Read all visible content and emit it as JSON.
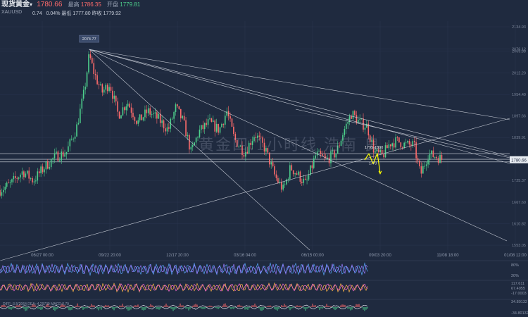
{
  "header": {
    "title": "现货黄金",
    "dropdown_glyph": "▾",
    "price": "1780.66",
    "symbol": "XAUUSD",
    "change": "0.74",
    "change_pct": "0.04%",
    "high_label": "最高",
    "high": "1786.35",
    "open_label": "开盘",
    "open": "1779.81",
    "low_label": "最低",
    "low": "1777.80",
    "prev_label": "昨收",
    "prev": "1779.92"
  },
  "watermark": "黄金四.1小时线 浩南 良",
  "colors": {
    "background": "#1f2a3f",
    "candle_up": "#4dd08c",
    "candle_down": "#ff6b6b",
    "trendline": "#c7ccd6",
    "forecast_arrow": "#ffff00",
    "price_tag": "#e8ecf2"
  },
  "chart_data": {
    "type": "candlestick",
    "price_axis_ticks": [
      2134.93,
      2076.12,
      2069.88,
      2012.2,
      1954.49,
      1897.66,
      1839.91,
      1782.38,
      1725.37,
      1667.6,
      1610.82,
      1553.05
    ],
    "time_axis_ticks": [
      "06/27 00:00",
      "09/22 20:00",
      "12/17 20:00",
      "03/16 04:00",
      "06/15 00:00",
      "09/03 20:00",
      "11/08 18:00",
      "01/08 12:00"
    ],
    "last_price": 1780.66,
    "annotations": [
      {
        "text": "2074.77",
        "type": "peak_label",
        "value": 2074.77
      },
      {
        "text": "1795-1800",
        "type": "target_zone"
      },
      {
        "text": "1770",
        "type": "target_level"
      }
    ],
    "price_path": [
      {
        "t": 0.0,
        "p": 1700
      },
      {
        "t": 0.02,
        "p": 1715
      },
      {
        "t": 0.045,
        "p": 1750
      },
      {
        "t": 0.065,
        "p": 1725
      },
      {
        "t": 0.09,
        "p": 1765
      },
      {
        "t": 0.11,
        "p": 1790
      },
      {
        "t": 0.13,
        "p": 1800
      },
      {
        "t": 0.15,
        "p": 1865
      },
      {
        "t": 0.165,
        "p": 1960
      },
      {
        "t": 0.175,
        "p": 2060
      },
      {
        "t": 0.185,
        "p": 2010
      },
      {
        "t": 0.2,
        "p": 1960
      },
      {
        "t": 0.215,
        "p": 1985
      },
      {
        "t": 0.232,
        "p": 1900
      },
      {
        "t": 0.25,
        "p": 1935
      },
      {
        "t": 0.27,
        "p": 1880
      },
      {
        "t": 0.29,
        "p": 1910
      },
      {
        "t": 0.31,
        "p": 1890
      },
      {
        "t": 0.33,
        "p": 1860
      },
      {
        "t": 0.345,
        "p": 1920
      },
      {
        "t": 0.36,
        "p": 1880
      },
      {
        "t": 0.375,
        "p": 1800
      },
      {
        "t": 0.39,
        "p": 1855
      },
      {
        "t": 0.41,
        "p": 1880
      },
      {
        "t": 0.43,
        "p": 1860
      },
      {
        "t": 0.445,
        "p": 1910
      },
      {
        "t": 0.46,
        "p": 1835
      },
      {
        "t": 0.48,
        "p": 1800
      },
      {
        "t": 0.5,
        "p": 1850
      },
      {
        "t": 0.52,
        "p": 1810
      },
      {
        "t": 0.54,
        "p": 1735
      },
      {
        "t": 0.556,
        "p": 1700
      },
      {
        "t": 0.57,
        "p": 1760
      },
      {
        "t": 0.585,
        "p": 1740
      },
      {
        "t": 0.6,
        "p": 1715
      },
      {
        "t": 0.62,
        "p": 1795
      },
      {
        "t": 0.64,
        "p": 1780
      },
      {
        "t": 0.66,
        "p": 1800
      },
      {
        "t": 0.675,
        "p": 1860
      },
      {
        "t": 0.69,
        "p": 1905
      },
      {
        "t": 0.705,
        "p": 1880
      },
      {
        "t": 0.72,
        "p": 1870
      },
      {
        "t": 0.735,
        "p": 1800
      },
      {
        "t": 0.75,
        "p": 1790
      },
      {
        "t": 0.765,
        "p": 1825
      },
      {
        "t": 0.78,
        "p": 1830
      },
      {
        "t": 0.795,
        "p": 1820
      },
      {
        "t": 0.812,
        "p": 1820
      },
      {
        "t": 0.825,
        "p": 1740
      },
      {
        "t": 0.84,
        "p": 1795
      },
      {
        "t": 0.855,
        "p": 1790
      },
      {
        "t": 0.87,
        "p": 1780
      }
    ],
    "forecast": [
      {
        "from": 1780,
        "to": 1797
      },
      {
        "from": 1797,
        "to": 1770
      },
      {
        "from": 1770,
        "to": 1798
      },
      {
        "from": 1798,
        "to": 1745
      }
    ],
    "indicators": {
      "panel1_axis": [
        "80%",
        "20%"
      ],
      "panel2_axis": [
        "117.611",
        "67.4055",
        "-17.0003"
      ],
      "panel3_axis": [
        "34.80132",
        "-34.80132"
      ],
      "panel3_legend": "DIFF:-3.5(2064  DEA:-4.29739  MACD:0.79"
    }
  }
}
